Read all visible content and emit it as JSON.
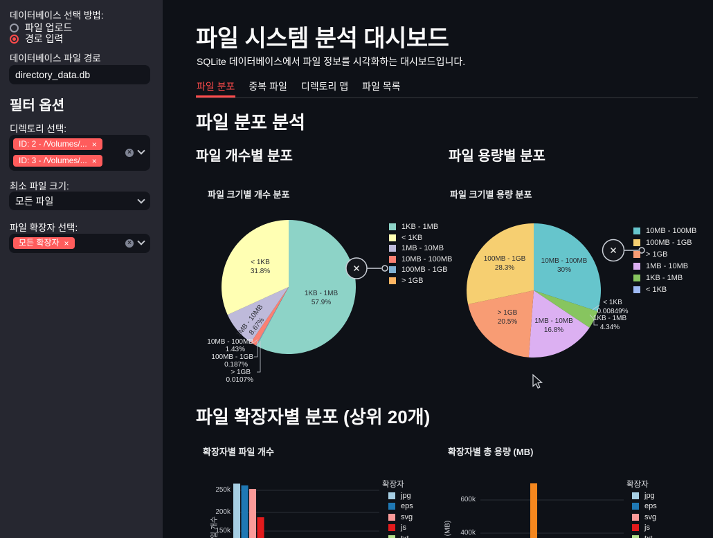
{
  "colors": {
    "background": "#0e1117",
    "sidebar_background": "#262730",
    "accent_red": "#FF4B4B",
    "tag_background": "#FF5C5C",
    "text": "#FAFAFA"
  },
  "sidebar": {
    "db_method_label": "데이터베이스 선택 방법:",
    "radio_options": [
      {
        "label": "파일 업로드",
        "selected": false
      },
      {
        "label": "경로 입력",
        "selected": true
      }
    ],
    "db_path_label": "데이터베이스 파일 경로",
    "db_path_value": "directory_data.db",
    "filter_header": "필터 옵션",
    "dir_select_label": "디렉토리 선택:",
    "dir_tags": [
      "ID: 2 - /Volumes/...",
      "ID: 3 - /Volumes/..."
    ],
    "min_size_label": "최소 파일 크기:",
    "min_size_value": "모든 파일",
    "ext_select_label": "파일 확장자 선택:",
    "ext_tags": [
      "모든 확장자"
    ]
  },
  "main": {
    "title": "파일 시스템 분석 대시보드",
    "subtitle": "SQLite 데이터베이스에서 파일 정보를 시각화하는 대시보드입니다.",
    "tabs": [
      {
        "label": "파일 분포",
        "active": true
      },
      {
        "label": "중복 파일",
        "active": false
      },
      {
        "label": "디렉토리 맵",
        "active": false
      },
      {
        "label": "파일 목록",
        "active": false
      }
    ],
    "section1_header": "파일 분포 분석",
    "col1_header": "파일 개수별 분포",
    "col2_header": "파일 용량별 분포",
    "section2_header": "파일 확장자별 분포 (상위 20개)"
  },
  "chart_data": [
    {
      "type": "pie",
      "title": "파일 크기별 개수 분포",
      "legend_position": "right",
      "slices": [
        {
          "label": "1KB - 1MB",
          "pct": 57.9,
          "pct_text": "57.9%",
          "color": "#8DD3C7"
        },
        {
          "label": "< 1KB",
          "pct": 31.8,
          "pct_text": "31.8%",
          "color": "#FFFFB3"
        },
        {
          "label": "1MB - 10MB",
          "pct": 8.67,
          "pct_text": "8.67%",
          "color": "#BEBADA"
        },
        {
          "label": "10MB - 100MB",
          "pct": 1.43,
          "pct_text": "1.43%",
          "color": "#FB8072"
        },
        {
          "label": "100MB - 1GB",
          "pct": 0.187,
          "pct_text": "0.187%",
          "color": "#80B1D3"
        },
        {
          "label": "> 1GB",
          "pct": 0.0107,
          "pct_text": "0.0107%",
          "color": "#FDB462"
        }
      ]
    },
    {
      "type": "pie",
      "title": "파일 크기별 용량 분포",
      "legend_position": "right",
      "slices": [
        {
          "label": "10MB - 100MB",
          "pct": 30,
          "pct_text": "30%",
          "color": "#66C5CC"
        },
        {
          "label": "100MB - 1GB",
          "pct": 28.3,
          "pct_text": "28.3%",
          "color": "#F6CF71"
        },
        {
          "label": "> 1GB",
          "pct": 20.5,
          "pct_text": "20.5%",
          "color": "#F89C74"
        },
        {
          "label": "1MB - 10MB",
          "pct": 16.8,
          "pct_text": "16.8%",
          "color": "#DCB0F2"
        },
        {
          "label": "1KB - 1MB",
          "pct": 4.34,
          "pct_text": "4.34%",
          "color": "#87C55F"
        },
        {
          "label": "< 1KB",
          "pct": 0.00849,
          "pct_text": "0.00849%",
          "color": "#9EB9F3"
        }
      ]
    },
    {
      "type": "bar",
      "title": "확장자별 파일 개수",
      "ylabel": "파일 개수",
      "legend_title": "확장자",
      "legend_truncated_color": "#2F8F8F",
      "yticks": [
        {
          "label": "250k",
          "value": 250000
        },
        {
          "label": "200k",
          "value": 200000
        },
        {
          "label": "150k",
          "value": 150000
        }
      ],
      "legend": [
        {
          "label": "jpg",
          "color": "#A6CEE3"
        },
        {
          "label": "eps",
          "color": "#1F78B4"
        },
        {
          "label": "svg",
          "color": "#FB9A99"
        },
        {
          "label": "js",
          "color": "#E31A1C"
        },
        {
          "label": "txt",
          "color": "#B2DF8A"
        }
      ],
      "visible_bars": [
        {
          "label": "jpg",
          "value": 265000,
          "pos": 0,
          "color": "#A6CEE3"
        },
        {
          "label": "eps",
          "value": 261000,
          "pos": 1,
          "color": "#1F78B4"
        },
        {
          "label": "svg",
          "value": 253000,
          "pos": 2,
          "color": "#FB9A99"
        },
        {
          "label": "js",
          "value": 189000,
          "pos": 3,
          "color": "#E31A1C"
        }
      ]
    },
    {
      "type": "bar",
      "title": "확장자별 총 용량 (MB)",
      "ylabel": "(MB)",
      "legend_title": "확장자",
      "legend_truncated_color": "#2F8F8F",
      "yticks": [
        {
          "label": "600k",
          "value": 600000
        },
        {
          "label": "400k",
          "value": 400000
        }
      ],
      "legend": [
        {
          "label": "jpg",
          "color": "#A6CEE3"
        },
        {
          "label": "eps",
          "color": "#1F78B4"
        },
        {
          "label": "svg",
          "color": "#FB9A99"
        },
        {
          "label": "js",
          "color": "#E31A1C"
        },
        {
          "label": "txt",
          "color": "#B2DF8A"
        }
      ],
      "visible_bars": [
        {
          "label": "",
          "value": 700000,
          "pos": 6,
          "color": "#F5871E"
        }
      ]
    }
  ]
}
